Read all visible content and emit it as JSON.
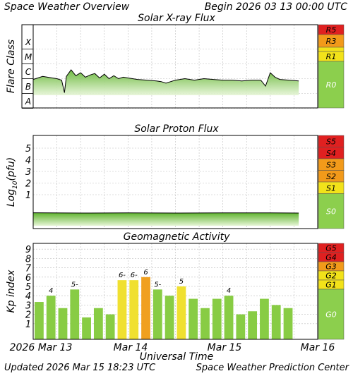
{
  "header": {
    "title": "Space Weather Overview",
    "begin": "Begin 2026 03 13 00:00 UTC"
  },
  "footer": {
    "updated": "Updated 2026 Mar 15 18:23 UTC",
    "source": "Space Weather Prediction Center"
  },
  "x_axis": {
    "title": "Universal Time",
    "ticks": [
      "2026 Mar 13",
      "Mar 14",
      "Mar 15",
      "Mar 16"
    ]
  },
  "colors": {
    "green": "#8ccf4d",
    "yellow": "#f2e21a",
    "orange": "#f29a1a",
    "red": "#e02020",
    "bar_green": "#88cc44",
    "bar_yellow": "#f0e030",
    "bar_orange": "#f0a020"
  },
  "chart_data": [
    {
      "type": "line",
      "title": "Solar X-ray Flux",
      "ylabel": "Flare Class",
      "y_ticks": [
        "A",
        "B",
        "C",
        "M",
        "X"
      ],
      "scale_labels": [
        "R5",
        "R3",
        "R1",
        "R0"
      ],
      "x_range_days": [
        0,
        3
      ],
      "series": [
        {
          "x": [
            0,
            0.05,
            0.1,
            0.15,
            0.2,
            0.25,
            0.3,
            0.33,
            0.35,
            0.4,
            0.45,
            0.5,
            0.55,
            0.6,
            0.65,
            0.7,
            0.75,
            0.8,
            0.85,
            0.9,
            0.95,
            1.0,
            1.1,
            1.2,
            1.3,
            1.35,
            1.4,
            1.45,
            1.5,
            1.6,
            1.7,
            1.8,
            1.9,
            2.0,
            2.1,
            2.2,
            2.3,
            2.4,
            2.45,
            2.5,
            2.55,
            2.6,
            2.7,
            2.8
          ],
          "y": [
            1.95,
            2.05,
            2.15,
            2.1,
            2.05,
            2.0,
            1.9,
            1.05,
            2.15,
            2.6,
            2.2,
            2.4,
            2.1,
            2.25,
            2.35,
            2.05,
            2.3,
            2.0,
            2.2,
            2.0,
            2.1,
            2.05,
            1.95,
            1.9,
            1.85,
            1.8,
            1.7,
            1.8,
            1.9,
            2.0,
            1.9,
            2.0,
            1.95,
            1.9,
            1.9,
            1.85,
            1.9,
            1.9,
            1.5,
            2.4,
            2.1,
            1.95,
            1.9,
            1.85
          ]
        }
      ]
    },
    {
      "type": "line",
      "title": "Solar Proton Flux",
      "ylabel": "Log",
      "ylabel_sub": "10",
      "ylabel_unit": "(pfu)",
      "y_ticks": [
        "1",
        "2",
        "3",
        "4",
        "5"
      ],
      "scale_labels": [
        "S5",
        "S4",
        "S3",
        "S2",
        "S1",
        "S0"
      ],
      "x_range_days": [
        0,
        3
      ],
      "series": [
        {
          "x": [
            0,
            0.5,
            1.0,
            1.5,
            2.0,
            2.5,
            2.8
          ],
          "y": [
            -0.35,
            -0.33,
            -0.34,
            -0.33,
            -0.34,
            -0.34,
            -0.33
          ]
        }
      ]
    },
    {
      "type": "bar",
      "title": "Geomagnetic Activity",
      "ylabel": "Kp index",
      "y_ticks": [
        "1",
        "2",
        "3",
        "4",
        "5",
        "6",
        "7",
        "8",
        "9"
      ],
      "scale_labels": [
        "G5",
        "G4",
        "G3",
        "G2",
        "G1",
        "G0"
      ],
      "ylim": [
        0,
        10
      ],
      "values": [
        3.33,
        4.0,
        2.67,
        4.67,
        1.67,
        2.67,
        2.0,
        5.67,
        5.67,
        6.0,
        4.67,
        4.0,
        5.0,
        3.67,
        2.67,
        3.67,
        4.0,
        2.0,
        2.33,
        3.67,
        3.0,
        2.67
      ],
      "data_labels": [
        "",
        "4",
        "",
        "5-",
        "",
        "",
        "",
        "6-",
        "6-",
        "6",
        "5-",
        "",
        "5",
        "",
        "",
        "",
        "4",
        "",
        "",
        "",
        "",
        ""
      ]
    }
  ]
}
